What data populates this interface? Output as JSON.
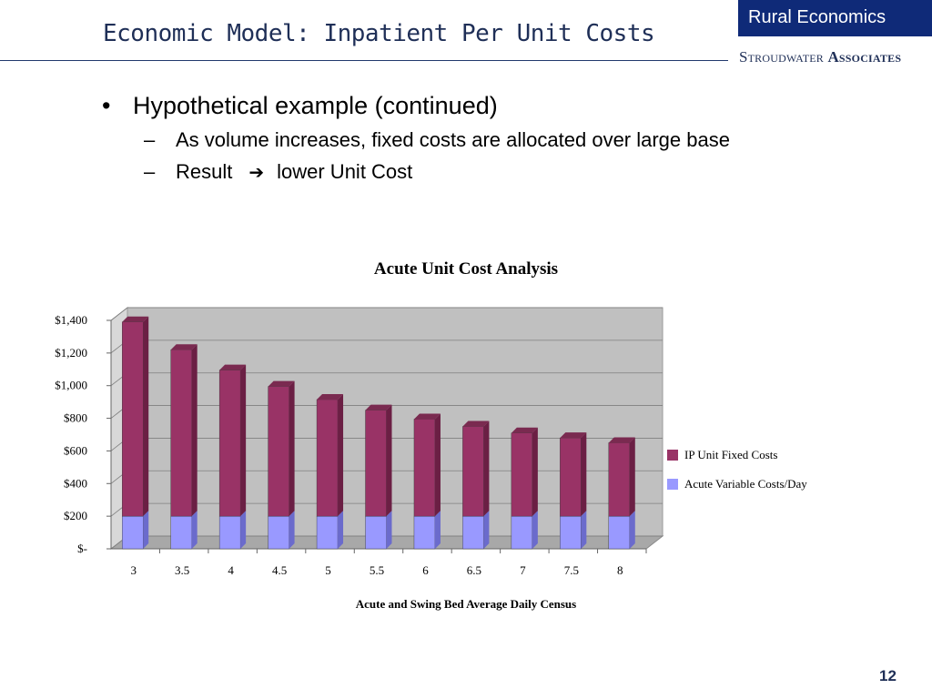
{
  "header": {
    "title": "Economic Model: Inpatient Per Unit Costs",
    "brand_box": "Rural Economics",
    "brand_sub_first": "Stroudwater",
    "brand_sub_second": "Associates"
  },
  "bullets": {
    "main": "Hypothetical example (continued)",
    "sub1": "As volume increases, fixed costs are allocated over large base",
    "sub2_left": "Result",
    "sub2_right": "lower Unit Cost"
  },
  "colors": {
    "fixed": "#993366",
    "variable": "#9999ff",
    "plot_bg": "#c0c0c0"
  },
  "chart_data": {
    "type": "bar",
    "stacked": true,
    "title": "Acute Unit Cost Analysis",
    "xlabel": "Acute and Swing Bed Average Daily Census",
    "ylabel": "",
    "ylim": [
      0,
      1400
    ],
    "y_ticks": [
      0,
      200,
      400,
      600,
      800,
      1000,
      1200,
      1400
    ],
    "y_tick_labels": [
      "$-",
      "$200",
      "$400",
      "$600",
      "$800",
      "$1,000",
      "$1,200",
      "$1,400"
    ],
    "categories": [
      "3",
      "3.5",
      "4",
      "4.5",
      "5",
      "5.5",
      "6",
      "6.5",
      "7",
      "7.5",
      "8"
    ],
    "series": [
      {
        "name": "Acute Variable Costs/Day",
        "values": [
          200,
          200,
          200,
          200,
          200,
          200,
          200,
          200,
          200,
          200,
          200
        ]
      },
      {
        "name": "IP Unit Fixed Costs",
        "values": [
          1190,
          1020,
          895,
          795,
          715,
          650,
          595,
          550,
          510,
          480,
          450
        ]
      }
    ],
    "legend_position": "right",
    "grid": true
  },
  "page_number": "12"
}
